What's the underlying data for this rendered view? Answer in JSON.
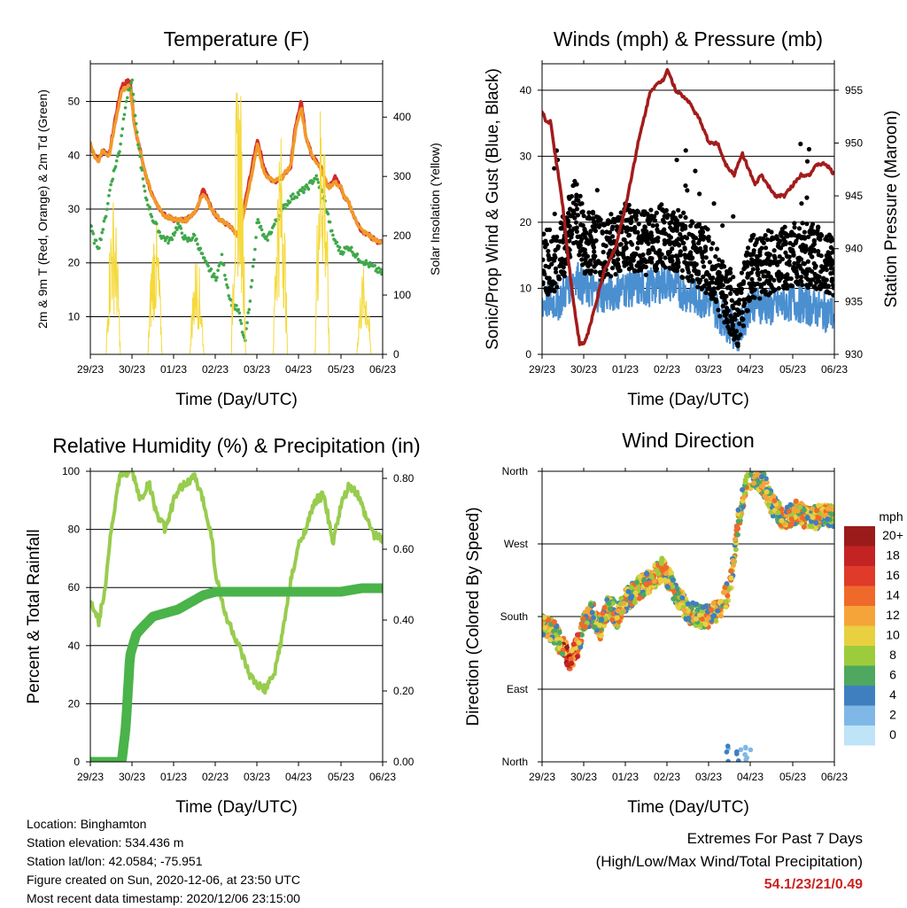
{
  "x_ticks": [
    "29/23",
    "30/23",
    "01/23",
    "02/23",
    "03/23",
    "04/23",
    "05/23",
    "06/23"
  ],
  "xlabel": "Time (Day/UTC)",
  "chart_data": [
    {
      "type": "line",
      "title": "Temperature (F)",
      "xlabel": "Time (Day/UTC)",
      "ylabel": "2m & 9m T (Red, Orange) & 2m Td (Green)",
      "y2label": "Solar Insolation (Yellow)",
      "ylim": [
        3,
        57
      ],
      "y_ticks": [
        10,
        20,
        30,
        40,
        50
      ],
      "y2lim": [
        0,
        490
      ],
      "y2_ticks": [
        0,
        100,
        200,
        300,
        400
      ],
      "x_ticks": [
        "29/23",
        "30/23",
        "01/23",
        "02/23",
        "03/23",
        "04/23",
        "05/23",
        "06/23"
      ],
      "series": [
        {
          "axis": "left",
          "color": "#d42a2a",
          "style": "line",
          "x": [
            0,
            0.1,
            0.2,
            0.3,
            0.45,
            0.6,
            0.75,
            0.95,
            1.05,
            1.3,
            1.5,
            1.75,
            2,
            2.3,
            2.55,
            2.7,
            2.9,
            3.1,
            3.3,
            3.55,
            3.8,
            4.0,
            4.15,
            4.25,
            4.4,
            4.6,
            4.8,
            4.9,
            5.05,
            5.15,
            5.3,
            5.5,
            5.7,
            5.85,
            6.0,
            6.1,
            6.2,
            6.35,
            6.5,
            6.7,
            6.85,
            7.0
          ],
          "y": [
            42,
            40,
            39,
            41,
            40,
            47,
            53,
            54,
            46,
            37,
            32,
            29,
            28,
            28,
            30,
            34,
            30,
            28,
            27,
            25,
            35,
            43,
            38,
            36,
            35,
            36,
            38,
            45,
            50,
            44,
            40,
            38,
            34,
            36,
            34,
            32,
            31,
            28,
            26,
            25,
            24,
            24
          ]
        },
        {
          "axis": "left",
          "color": "#f09a2a",
          "style": "line",
          "x": [
            0,
            0.1,
            0.2,
            0.3,
            0.45,
            0.6,
            0.75,
            0.95,
            1.05,
            1.3,
            1.5,
            1.75,
            2,
            2.3,
            2.55,
            2.7,
            2.9,
            3.1,
            3.3,
            3.55,
            3.8,
            4.0,
            4.15,
            4.25,
            4.4,
            4.6,
            4.8,
            4.9,
            5.05,
            5.15,
            5.3,
            5.5,
            5.7,
            5.85,
            6.0,
            6.1,
            6.2,
            6.35,
            6.5,
            6.7,
            6.85,
            7.0
          ],
          "y": [
            42,
            40,
            39,
            41,
            40,
            46,
            52,
            53,
            46,
            37,
            32,
            29,
            28,
            28,
            30,
            33,
            30,
            28,
            27,
            25,
            34,
            42,
            37,
            36,
            35,
            36,
            38,
            44,
            49,
            44,
            40,
            38,
            34,
            35,
            34,
            32,
            31,
            28,
            26,
            25,
            24,
            24
          ]
        },
        {
          "axis": "left",
          "color": "#3fa84a",
          "style": "dotted",
          "x": [
            0,
            0.1,
            0.2,
            0.35,
            0.5,
            0.7,
            0.85,
            1.0,
            1.1,
            1.3,
            1.5,
            1.7,
            1.9,
            2.1,
            2.3,
            2.5,
            2.75,
            3.0,
            3.15,
            3.35,
            3.55,
            3.7,
            3.85,
            4.0,
            4.2,
            4.4,
            4.6,
            4.8,
            5.0,
            5.2,
            5.4,
            5.6,
            5.8,
            6.0,
            6.2,
            6.4,
            6.6,
            6.8,
            7.0
          ],
          "y": [
            27,
            24,
            23,
            28,
            35,
            41,
            50,
            54,
            45,
            33,
            28,
            25,
            24,
            27,
            24,
            25,
            20,
            17,
            21,
            13,
            11,
            5,
            15,
            28,
            24,
            27,
            30,
            32,
            33,
            34,
            36,
            32,
            25,
            22,
            23,
            21,
            20,
            19,
            18
          ]
        },
        {
          "axis": "right",
          "color": "#f5d93a",
          "style": "bursts",
          "days": [
            0.55,
            1.55,
            2.55,
            3.55,
            4.55,
            5.55,
            6.55
          ],
          "peaks": [
            270,
            230,
            170,
            490,
            380,
            470,
            150
          ]
        }
      ]
    },
    {
      "type": "line",
      "title": "Winds (mph) & Pressure (mb)",
      "xlabel": "Time (Day/UTC)",
      "ylabel": "Sonic/Prop Wind & Gust (Blue, Black)",
      "y2label": "Station Pressure (Maroon)",
      "ylim": [
        0,
        44
      ],
      "y_ticks": [
        0,
        10,
        20,
        30,
        40
      ],
      "y2lim": [
        930,
        957.5
      ],
      "y2_ticks": [
        930,
        935,
        940,
        945,
        950,
        955
      ],
      "x_ticks": [
        "29/23",
        "30/23",
        "01/23",
        "02/23",
        "03/23",
        "04/23",
        "05/23",
        "06/23"
      ],
      "series": [
        {
          "axis": "left",
          "color": "#4a8fd0",
          "style": "band",
          "x": [
            0,
            0.4,
            0.8,
            1.0,
            1.5,
            2.0,
            2.5,
            3.0,
            3.5,
            4.0,
            4.4,
            4.7,
            5.0,
            5.5,
            6.0,
            6.5,
            7.0
          ],
          "y": [
            8,
            8,
            12,
            10,
            9,
            10,
            10,
            11,
            9,
            8,
            5,
            3,
            8,
            7,
            8,
            7,
            6
          ]
        },
        {
          "axis": "left",
          "color": "#000000",
          "style": "dots",
          "x": [
            0,
            0.4,
            0.8,
            1.0,
            1.5,
            2.0,
            2.5,
            3.0,
            3.5,
            4.0,
            4.4,
            4.7,
            5.0,
            5.5,
            6.0,
            6.5,
            7.0
          ],
          "y": [
            14,
            14,
            22,
            17,
            16,
            18,
            17,
            18,
            16,
            14,
            9,
            6,
            13,
            14,
            15,
            15,
            13
          ]
        },
        {
          "axis": "right",
          "color": "#a31b1b",
          "style": "line",
          "x": [
            0,
            0.1,
            0.2,
            0.35,
            0.5,
            0.6,
            0.75,
            0.9,
            1.0,
            1.1,
            1.3,
            1.5,
            1.75,
            2.0,
            2.3,
            2.6,
            2.9,
            3.0,
            3.2,
            3.5,
            3.8,
            4.0,
            4.2,
            4.4,
            4.6,
            4.8,
            5.0,
            5.1,
            5.25,
            5.4,
            5.6,
            5.8,
            6.0,
            6.2,
            6.4,
            6.6,
            6.8,
            7.0
          ],
          "y": [
            953,
            952,
            952,
            948,
            944,
            940,
            935,
            931,
            931,
            932,
            935,
            938,
            940,
            944,
            950,
            955,
            956,
            957,
            955,
            954,
            952,
            950,
            950,
            948,
            947,
            949,
            947,
            946,
            947,
            946,
            945,
            945,
            946,
            947,
            947,
            948,
            948,
            947
          ]
        }
      ]
    },
    {
      "type": "line",
      "title": "Relative Humidity (%) & Precipitation (in)",
      "xlabel": "Time (Day/UTC)",
      "ylabel": "Percent & Total Rainfall",
      "ylim": [
        0,
        100
      ],
      "y_ticks": [
        0,
        20,
        40,
        60,
        80,
        100
      ],
      "y2lim": [
        0,
        0.82
      ],
      "y2_ticks": [
        "0.00",
        "0.20",
        "0.40",
        "0.60",
        "0.80"
      ],
      "x_ticks": [
        "29/23",
        "30/23",
        "01/23",
        "02/23",
        "03/23",
        "04/23",
        "05/23",
        "06/23"
      ],
      "series": [
        {
          "axis": "left",
          "color": "#98cc4e",
          "style": "line",
          "x": [
            0,
            0.2,
            0.35,
            0.5,
            0.7,
            0.9,
            1.0,
            1.2,
            1.4,
            1.6,
            1.8,
            2.0,
            2.2,
            2.5,
            2.7,
            2.9,
            3.0,
            3.2,
            3.4,
            3.6,
            3.8,
            4.0,
            4.2,
            4.4,
            4.6,
            4.8,
            5.0,
            5.2,
            5.4,
            5.6,
            5.8,
            6.0,
            6.2,
            6.4,
            6.6,
            6.8,
            7.0
          ],
          "y": [
            56,
            48,
            60,
            80,
            98,
            100,
            100,
            90,
            96,
            85,
            80,
            90,
            95,
            98,
            90,
            78,
            65,
            52,
            45,
            38,
            30,
            26,
            25,
            30,
            44,
            62,
            75,
            82,
            90,
            92,
            75,
            88,
            95,
            92,
            84,
            78,
            77
          ]
        },
        {
          "axis": "right",
          "color": "#4ab34a",
          "style": "thick",
          "x": [
            0,
            0.5,
            0.75,
            0.85,
            0.95,
            1.1,
            1.25,
            1.5,
            1.8,
            2.1,
            2.4,
            2.7,
            3.0,
            3.5,
            4.0,
            5.0,
            6.0,
            6.5,
            7.0
          ],
          "y": [
            0,
            0,
            0,
            0.1,
            0.3,
            0.36,
            0.38,
            0.41,
            0.42,
            0.43,
            0.45,
            0.47,
            0.48,
            0.48,
            0.48,
            0.48,
            0.48,
            0.49,
            0.49
          ]
        }
      ]
    },
    {
      "type": "scatter",
      "title": "Wind Direction",
      "xlabel": "Time (Day/UTC)",
      "ylabel": "Direction (Colored By Speed)",
      "y_ticks": [
        "North",
        "East",
        "South",
        "West",
        "North"
      ],
      "ylim": [
        0,
        360
      ],
      "x_ticks": [
        "29/23",
        "30/23",
        "01/23",
        "02/23",
        "03/23",
        "04/23",
        "05/23",
        "06/23"
      ],
      "colorbar_title": "mph",
      "colorbar_labels": [
        "20+",
        "18",
        "16",
        "14",
        "12",
        "10",
        "8",
        "6",
        "4",
        "2",
        "0"
      ],
      "colorbar_colors": [
        "#9b1b1b",
        "#c42323",
        "#e03a2a",
        "#ef6a2a",
        "#f5a43a",
        "#e8d040",
        "#9ccc3c",
        "#4ea860",
        "#3f7fc0",
        "#7fb8e6",
        "#bfe3f7"
      ],
      "x": [
        0,
        0.3,
        0.5,
        0.7,
        0.9,
        1.0,
        1.2,
        1.4,
        1.6,
        1.8,
        2.0,
        2.3,
        2.6,
        2.9,
        3.0,
        3.2,
        3.5,
        3.8,
        4.0,
        4.2,
        4.35,
        4.5,
        4.7,
        4.9,
        5.1,
        5.3,
        5.5,
        5.8,
        6.1,
        6.4,
        6.7,
        7.0
      ],
      "y": [
        170,
        160,
        140,
        125,
        150,
        170,
        185,
        165,
        195,
        180,
        200,
        215,
        225,
        240,
        230,
        210,
        185,
        180,
        180,
        185,
        200,
        215,
        300,
        350,
        355,
        345,
        320,
        300,
        310,
        300,
        305,
        305
      ]
    }
  ],
  "footer": {
    "location": "Location: Binghamton",
    "elevation": "Station elevation: 534.436 m",
    "latlon": "Station lat/lon: 42.0584; -75.951",
    "created": "Figure created on Sun, 2020-12-06, at 23:50 UTC",
    "recent": "Most recent data timestamp: 2020/12/06 23:15:00"
  },
  "extremes": {
    "title": "Extremes For Past 7 Days",
    "subtitle": "(High/Low/Max Wind/Total Precipitation)",
    "values": "54.1/23/21/0.49"
  }
}
